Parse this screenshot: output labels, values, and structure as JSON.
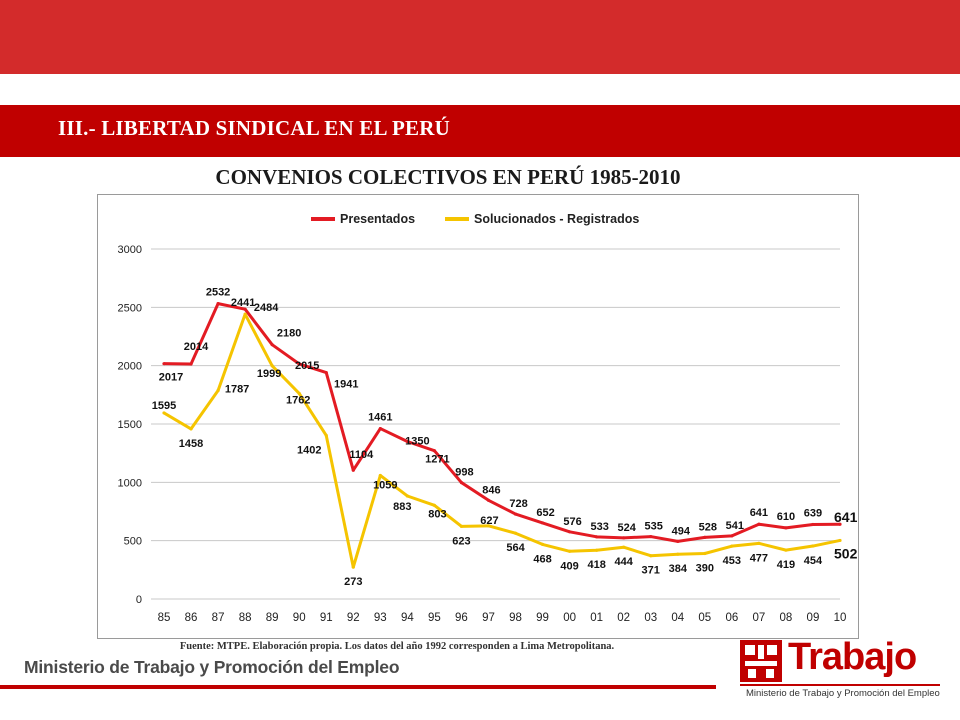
{
  "header": {
    "section_title": "III.- LIBERTAD SINDICAL EN EL PERÚ",
    "band_color": "#c00000",
    "top_band_color": "#d32b2b"
  },
  "chart_heading": "CONVENIOS COLECTIVOS EN PERÚ 1985-2010",
  "chart_data": {
    "type": "line",
    "title": "",
    "xlabel": "",
    "ylabel": "",
    "categories": [
      "85",
      "86",
      "87",
      "88",
      "89",
      "90",
      "91",
      "92",
      "93",
      "94",
      "95",
      "96",
      "97",
      "98",
      "99",
      "00",
      "01",
      "02",
      "03",
      "04",
      "05",
      "06",
      "07",
      "08",
      "09",
      "10"
    ],
    "ylim": [
      0,
      3000
    ],
    "yticks": [
      0,
      500,
      1000,
      1500,
      2000,
      2500,
      3000
    ],
    "grid": true,
    "legend_position": "top",
    "series": [
      {
        "name": "Presentados",
        "color": "#e31b23",
        "values": [
          2017,
          2014,
          2532,
          2484,
          2180,
          2015,
          1941,
          1104,
          1461,
          1350,
          1271,
          998,
          846,
          728,
          652,
          576,
          533,
          524,
          535,
          494,
          528,
          541,
          641,
          610,
          639,
          641
        ]
      },
      {
        "name": "Solucionados - Registrados",
        "color": "#f5c400",
        "values": [
          1595,
          1458,
          1787,
          2441,
          1999,
          1762,
          1402,
          273,
          1059,
          883,
          803,
          623,
          627,
          564,
          468,
          409,
          418,
          444,
          371,
          384,
          390,
          453,
          477,
          419,
          454,
          502
        ]
      }
    ]
  },
  "source_note": "Fuente: MTPE. Elaboración propia. Los datos del año 1992 corresponden a Lima Metropolitana.",
  "footer": {
    "ministry": "Ministerio de Trabajo y Promoción del Empleo",
    "logo_word": "Trabajo",
    "logo_sub": "Ministerio de Trabajo y Promoción del Empleo"
  }
}
